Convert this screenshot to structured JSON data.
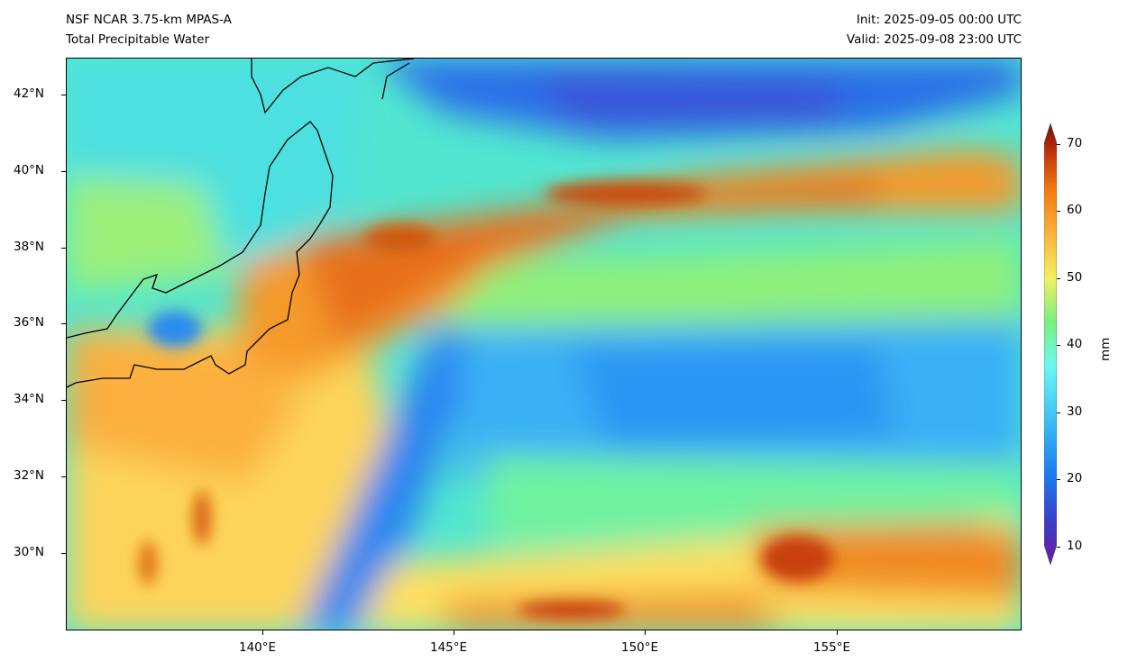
{
  "header": {
    "model": "NSF NCAR 3.75-km MPAS-A",
    "field": "Total Precipitable Water",
    "init": "Init: 2025-09-05 00:00 UTC",
    "valid": "Valid: 2025-09-08 23:00 UTC"
  },
  "map": {
    "lon_ticks": [
      "140°E",
      "145°E",
      "150°E",
      "155°E"
    ],
    "lat_ticks": [
      "42°N",
      "40°N",
      "38°N",
      "36°N",
      "34°N",
      "32°N",
      "30°N"
    ],
    "extent": {
      "lon": [
        134.9,
        159.9
      ],
      "lat": [
        28.0,
        43.0
      ]
    }
  },
  "colorbar": {
    "unit": "mm",
    "ticks": [
      "70",
      "60",
      "50",
      "40",
      "30",
      "20",
      "10"
    ],
    "range": [
      10,
      70
    ],
    "extend": "both"
  }
}
